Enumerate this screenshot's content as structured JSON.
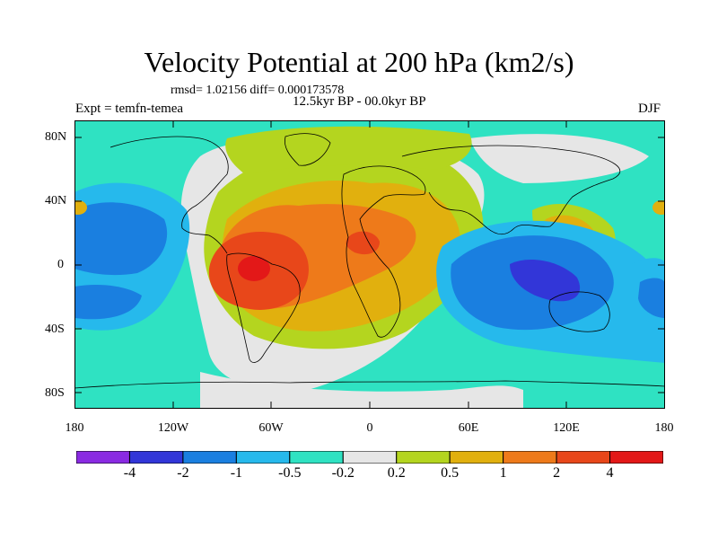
{
  "title": "Velocity Potential at 200 hPa (km2/s)",
  "stats": "rmsd= 1.02156 diff= 0.000173578",
  "period": "12.5kyr BP - 00.0kyr BP",
  "experiment": "Expt = temfn-temea",
  "season": "DJF",
  "lat_labels": [
    "80N",
    "40N",
    "0",
    "40S",
    "80S"
  ],
  "lon_labels": [
    "180",
    "120W",
    "60W",
    "0",
    "60E",
    "120E",
    "180"
  ],
  "colorbar": {
    "levels": [
      "-4",
      "-2",
      "-1",
      "-0.5",
      "-0.2",
      "0.2",
      "0.5",
      "1",
      "2",
      "4"
    ],
    "colors": [
      "#8a2be2",
      "#3236d8",
      "#1a7fe0",
      "#26b9ec",
      "#2fe2c2",
      "#e6e6e6",
      "#b4d51f",
      "#e1b00e",
      "#ee7a1a",
      "#e8471a",
      "#e31818"
    ]
  }
}
